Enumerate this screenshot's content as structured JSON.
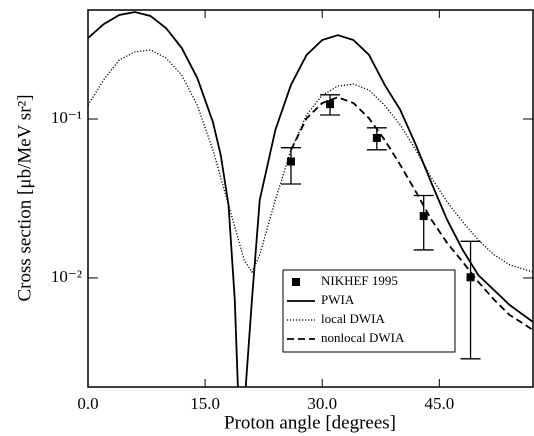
{
  "chart_data": {
    "type": "line",
    "x_label": "Proton angle [degrees]",
    "y_label": "Cross section [μb/MeV sr²]",
    "xlim": [
      0,
      57
    ],
    "xticks": [
      {
        "value": 0,
        "label": "0.0"
      },
      {
        "value": 15,
        "label": "15.0"
      },
      {
        "value": 30,
        "label": "30.0"
      },
      {
        "value": 45,
        "label": "45.0"
      }
    ],
    "ylim": [
      0.00206,
      0.485
    ],
    "log_y": true,
    "yticks": [
      {
        "value": 0.1,
        "label": "10⁻¹"
      },
      {
        "value": 0.01,
        "label": "10⁻²"
      }
    ],
    "legend": "lower right",
    "series": [
      {
        "name": "NIKHEF 1995",
        "type": "scatter",
        "color": "#000000",
        "x": [
          26,
          31,
          37,
          43,
          49
        ],
        "values": [
          0.054,
          0.124,
          0.076,
          0.0245,
          0.0101
        ],
        "y_low": [
          0.039,
          0.106,
          0.064,
          0.015,
          0.0031
        ],
        "y_high": [
          0.066,
          0.142,
          0.088,
          0.033,
          0.017
        ]
      },
      {
        "name": "PWIA",
        "type": "line",
        "dash": "solid",
        "color": "#000000",
        "x": [
          0,
          2,
          4,
          6,
          8,
          10,
          12,
          14,
          16,
          17,
          18,
          18.8,
          19.3,
          20.0,
          21,
          22,
          24,
          26,
          28,
          30,
          32,
          34,
          36,
          38,
          40,
          42,
          44,
          46,
          48,
          50,
          52,
          54,
          57
        ],
        "values": [
          0.323,
          0.395,
          0.451,
          0.471,
          0.445,
          0.373,
          0.28,
          0.181,
          0.0957,
          0.0594,
          0.0288,
          0.00728,
          0.0015,
          0.0015,
          0.00728,
          0.031,
          0.0853,
          0.164,
          0.253,
          0.314,
          0.337,
          0.314,
          0.253,
          0.164,
          0.114,
          0.0686,
          0.0395,
          0.0232,
          0.015,
          0.0104,
          0.0084,
          0.00676,
          0.00528
        ]
      },
      {
        "name": "local DWIA",
        "type": "line",
        "dash": "dotted",
        "color": "#000000",
        "x": [
          0,
          2,
          4,
          6,
          8,
          10,
          12,
          14,
          16,
          18,
          20,
          21,
          22,
          24,
          26,
          28,
          30,
          32,
          34,
          36,
          38,
          40,
          42,
          44,
          46,
          48,
          50,
          52,
          54,
          57
        ],
        "values": [
          0.122,
          0.176,
          0.235,
          0.264,
          0.272,
          0.242,
          0.189,
          0.122,
          0.0638,
          0.0288,
          0.013,
          0.0109,
          0.014,
          0.031,
          0.0638,
          0.106,
          0.141,
          0.161,
          0.166,
          0.152,
          0.122,
          0.0917,
          0.0638,
          0.0426,
          0.0301,
          0.0225,
          0.0173,
          0.014,
          0.0121,
          0.0109
        ]
      },
      {
        "name": "nonlocal DWIA",
        "type": "line",
        "dash": "dashed",
        "color": "#000000",
        "x": [
          26,
          28,
          30,
          32,
          34,
          36,
          38,
          40,
          42,
          44,
          46,
          48,
          50,
          52,
          54,
          57
        ],
        "values": [
          0.0638,
          0.101,
          0.126,
          0.137,
          0.126,
          0.101,
          0.0738,
          0.0514,
          0.0348,
          0.0232,
          0.0166,
          0.0126,
          0.00944,
          0.0073,
          0.00585,
          0.00471
        ]
      }
    ]
  }
}
